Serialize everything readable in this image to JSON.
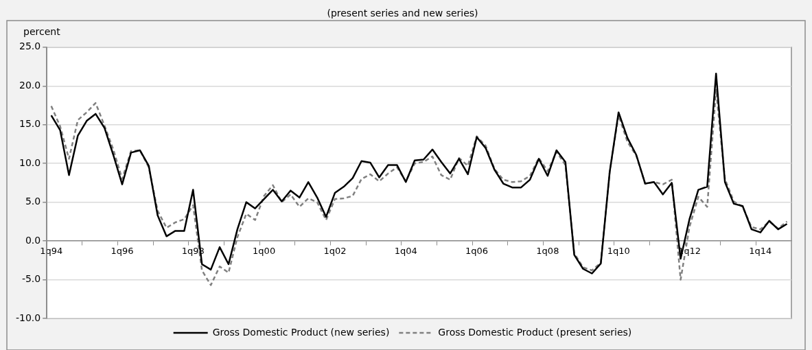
{
  "chart_data": {
    "type": "line",
    "title": "(present series and new series)",
    "ylabel": "percent",
    "categories": [
      "1q94",
      null,
      null,
      null,
      null,
      null,
      null,
      null,
      "1q96",
      null,
      null,
      null,
      null,
      null,
      null,
      null,
      "1q98",
      null,
      null,
      null,
      null,
      null,
      null,
      null,
      "1q00",
      null,
      null,
      null,
      null,
      null,
      null,
      null,
      "1q02",
      null,
      null,
      null,
      null,
      null,
      null,
      null,
      "1q04",
      null,
      null,
      null,
      null,
      null,
      null,
      null,
      "1q06",
      null,
      null,
      null,
      null,
      null,
      null,
      null,
      "1q08",
      null,
      null,
      null,
      null,
      null,
      null,
      null,
      "1q10",
      null,
      null,
      null,
      null,
      null,
      null,
      null,
      "1q12",
      null,
      null,
      null,
      null,
      null,
      null,
      null,
      "1q14",
      null,
      null,
      null
    ],
    "series": [
      {
        "name": "Gross Domestic Product (new series)",
        "color": "#000000",
        "line_style": "solid",
        "values": [
          16.2,
          14.3,
          8.5,
          13.6,
          15.5,
          16.4,
          14.6,
          11.1,
          7.3,
          11.4,
          11.7,
          9.7,
          3.3,
          0.6,
          1.3,
          1.3,
          6.6,
          -3.0,
          -3.7,
          -0.8,
          -3.0,
          1.5,
          5.0,
          4.2,
          5.4,
          6.6,
          5.1,
          6.5,
          5.6,
          7.6,
          5.6,
          3.1,
          6.2,
          7.0,
          8.1,
          10.3,
          10.1,
          8.2,
          9.8,
          9.8,
          7.6,
          10.4,
          10.5,
          11.8,
          10.2,
          8.7,
          10.6,
          8.6,
          13.4,
          12.0,
          9.2,
          7.4,
          6.9,
          6.9,
          7.9,
          10.6,
          8.4,
          11.7,
          10.2,
          -1.8,
          -3.6,
          -4.2,
          -2.9,
          8.9,
          16.6,
          13.3,
          11.1,
          7.4,
          7.6,
          6.0,
          7.5,
          -2.3,
          2.8,
          6.6,
          7.0,
          21.6,
          7.6,
          4.8,
          4.5,
          1.5,
          1.1,
          2.6,
          1.5,
          2.2
        ]
      },
      {
        "name": "Gross Domestic Product (present series)",
        "color": "#808080",
        "line_style": "dashed",
        "values": [
          17.4,
          14.8,
          10.6,
          15.6,
          16.6,
          17.8,
          14.9,
          11.8,
          8.0,
          11.6,
          11.7,
          9.5,
          3.9,
          1.7,
          2.4,
          2.8,
          4.6,
          -3.8,
          -5.7,
          -3.3,
          -4.1,
          0.5,
          3.5,
          2.7,
          5.8,
          7.2,
          5.0,
          6.0,
          4.4,
          5.5,
          5.0,
          2.7,
          5.4,
          5.5,
          5.8,
          8.0,
          8.6,
          7.7,
          8.7,
          9.5,
          7.7,
          10.0,
          10.2,
          10.9,
          8.5,
          7.9,
          10.7,
          9.7,
          13.5,
          12.3,
          9.3,
          7.9,
          7.6,
          7.7,
          8.4,
          10.7,
          9.0,
          11.5,
          9.8,
          -1.6,
          -3.4,
          -3.8,
          -2.8,
          8.9,
          16.2,
          12.8,
          11.0,
          7.4,
          7.6,
          7.3,
          7.9,
          -5.0,
          1.8,
          5.7,
          4.4,
          19.5,
          8.0,
          5.1,
          4.4,
          1.8,
          1.5,
          2.5,
          1.6,
          2.5
        ]
      }
    ],
    "ylim": [
      -10,
      25
    ],
    "yticks": [
      {
        "value": -10,
        "label": "-10.0"
      },
      {
        "value": -5,
        "label": "-5.0"
      },
      {
        "value": 0,
        "label": "0.0"
      },
      {
        "value": 5,
        "label": "5.0"
      },
      {
        "value": 10,
        "label": "10.0"
      },
      {
        "value": 15,
        "label": "15.0"
      },
      {
        "value": 20,
        "label": "20.0"
      },
      {
        "value": 25,
        "label": "25.0"
      }
    ],
    "grid": "y",
    "legend": "bottom",
    "marker": "none"
  }
}
